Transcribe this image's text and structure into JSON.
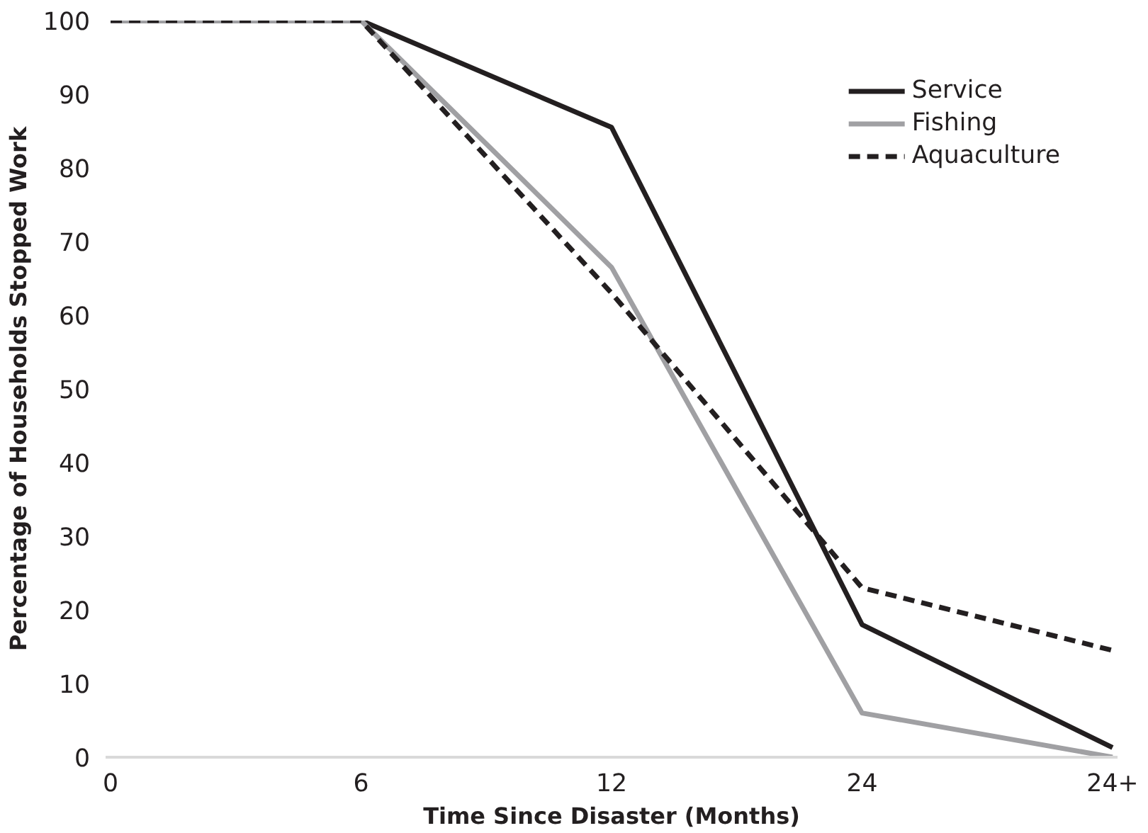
{
  "chart_data": {
    "type": "line",
    "xlabel": "Time Since Disaster (Months)",
    "ylabel": "Percentage of Households Stopped Work",
    "categories": [
      "0",
      "6",
      "12",
      "24",
      "24+"
    ],
    "series": [
      {
        "name": "Service",
        "color": "#231f20",
        "values": [
          100,
          100,
          85.5,
          18,
          1.3
        ]
      },
      {
        "name": "Fishing",
        "color": "#a0a0a3",
        "values": [
          100,
          100,
          66.5,
          6,
          0
        ]
      },
      {
        "name": "Aquaculture",
        "color": "#231f20",
        "values": [
          100,
          100,
          63,
          23,
          14.5
        ],
        "line_style": "dashed"
      }
    ],
    "ylim": [
      0,
      100
    ],
    "yticks": [
      0,
      10,
      20,
      30,
      40,
      50,
      60,
      70,
      80,
      90,
      100
    ],
    "grid": false,
    "legend": "top right",
    "marker": "none",
    "line_style": "solid"
  }
}
